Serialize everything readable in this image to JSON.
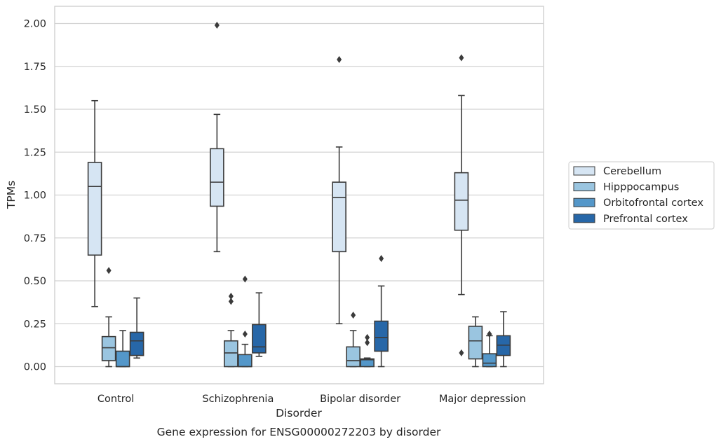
{
  "chart_data": {
    "type": "box",
    "caption": "Gene expression for ENSG00000272203 by disorder",
    "xlabel": "Disorder",
    "ylabel": "TPMs",
    "ylim": [
      -0.1,
      2.1
    ],
    "yticks": [
      0.0,
      0.25,
      0.5,
      0.75,
      1.0,
      1.25,
      1.5,
      1.75,
      2.0
    ],
    "ytick_labels": [
      "0.00",
      "0.25",
      "0.50",
      "0.75",
      "1.00",
      "1.25",
      "1.50",
      "1.75",
      "2.00"
    ],
    "grid": "horizontal",
    "legend_position": "right",
    "categories": [
      "Control",
      "Schizophrenia",
      "Bipolar disorder",
      "Major depression"
    ],
    "series": [
      {
        "name": "Cerebellum",
        "color": "#d6e5f3",
        "boxes": [
          {
            "whislo": 0.35,
            "q1": 0.65,
            "med": 1.05,
            "q3": 1.19,
            "whishi": 1.55,
            "fliers": []
          },
          {
            "whislo": 0.67,
            "q1": 0.935,
            "med": 1.075,
            "q3": 1.27,
            "whishi": 1.47,
            "fliers": [
              1.99
            ]
          },
          {
            "whislo": 0.25,
            "q1": 0.67,
            "med": 0.985,
            "q3": 1.075,
            "whishi": 1.28,
            "fliers": [
              1.79
            ]
          },
          {
            "whislo": 0.42,
            "q1": 0.795,
            "med": 0.97,
            "q3": 1.13,
            "whishi": 1.58,
            "fliers": [
              0.08,
              1.8
            ]
          }
        ]
      },
      {
        "name": "Hipppocampus",
        "color": "#9ac5e0",
        "boxes": [
          {
            "whislo": 0.0,
            "q1": 0.035,
            "med": 0.11,
            "q3": 0.175,
            "whishi": 0.29,
            "fliers": [
              0.56
            ]
          },
          {
            "whislo": 0.0,
            "q1": 0.0,
            "med": 0.08,
            "q3": 0.15,
            "whishi": 0.21,
            "fliers": [
              0.38,
              0.41
            ]
          },
          {
            "whislo": 0.0,
            "q1": 0.0,
            "med": 0.035,
            "q3": 0.115,
            "whishi": 0.21,
            "fliers": [
              0.3
            ]
          },
          {
            "whislo": 0.0,
            "q1": 0.045,
            "med": 0.15,
            "q3": 0.235,
            "whishi": 0.29,
            "fliers": []
          }
        ]
      },
      {
        "name": "Orbitofrontal cortex",
        "color": "#5497c9",
        "boxes": [
          {
            "whislo": 0.0,
            "q1": 0.0,
            "med": 0.0,
            "q3": 0.09,
            "whishi": 0.21,
            "fliers": []
          },
          {
            "whislo": 0.0,
            "q1": 0.0,
            "med": 0.0,
            "q3": 0.07,
            "whishi": 0.13,
            "fliers": [
              0.19,
              0.51
            ]
          },
          {
            "whislo": 0.0,
            "q1": 0.0,
            "med": 0.04,
            "q3": 0.045,
            "whishi": 0.05,
            "fliers": [
              0.14,
              0.17
            ]
          },
          {
            "whislo": 0.0,
            "q1": 0.0,
            "med": 0.02,
            "q3": 0.075,
            "whishi": 0.18,
            "fliers": [
              0.19
            ]
          }
        ]
      },
      {
        "name": "Prefrontal cortex",
        "color": "#2767a8",
        "boxes": [
          {
            "whislo": 0.05,
            "q1": 0.065,
            "med": 0.15,
            "q3": 0.2,
            "whishi": 0.4,
            "fliers": []
          },
          {
            "whislo": 0.06,
            "q1": 0.08,
            "med": 0.115,
            "q3": 0.245,
            "whishi": 0.43,
            "fliers": []
          },
          {
            "whislo": 0.0,
            "q1": 0.09,
            "med": 0.17,
            "q3": 0.265,
            "whishi": 0.47,
            "fliers": [
              0.63
            ]
          },
          {
            "whislo": 0.0,
            "q1": 0.065,
            "med": 0.125,
            "q3": 0.18,
            "whishi": 0.32,
            "fliers": []
          }
        ]
      }
    ]
  }
}
